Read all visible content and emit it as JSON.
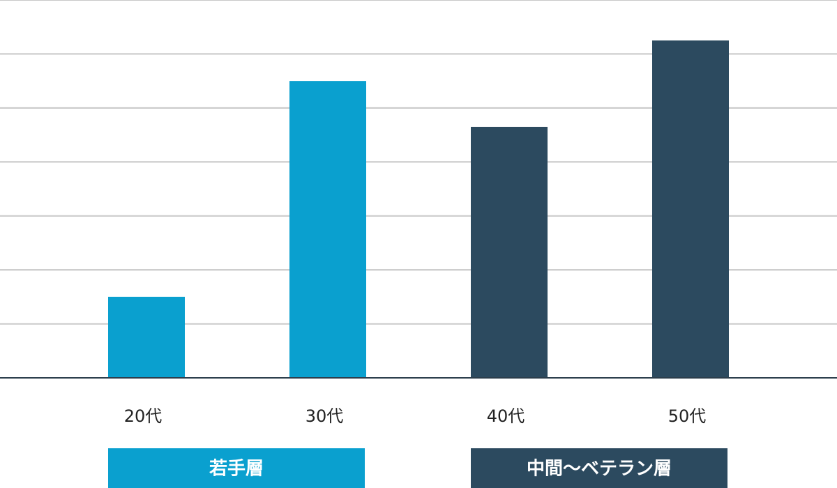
{
  "chart_data": {
    "type": "bar",
    "title": "",
    "xlabel": "",
    "ylabel": "",
    "categories": [
      "20代",
      "30代",
      "40代",
      "50代"
    ],
    "values": [
      1.5,
      5.5,
      4.65,
      6.25
    ],
    "bar_colors": [
      "#0aa0cf",
      "#0aa0cf",
      "#2c4a5f",
      "#2c4a5f"
    ],
    "ylim": [
      0,
      7
    ],
    "grid": true,
    "y_tick_labels_visible": false,
    "groups": [
      {
        "label": "若手層",
        "categories": [
          "20代",
          "30代"
        ],
        "color": "#0aa0cf"
      },
      {
        "label": "中間〜ベテラン層",
        "categories": [
          "40代",
          "50代"
        ],
        "color": "#2c4a5f"
      }
    ],
    "gridline_color": "#c8c8c8",
    "axis_color": "#2c3e4c"
  }
}
